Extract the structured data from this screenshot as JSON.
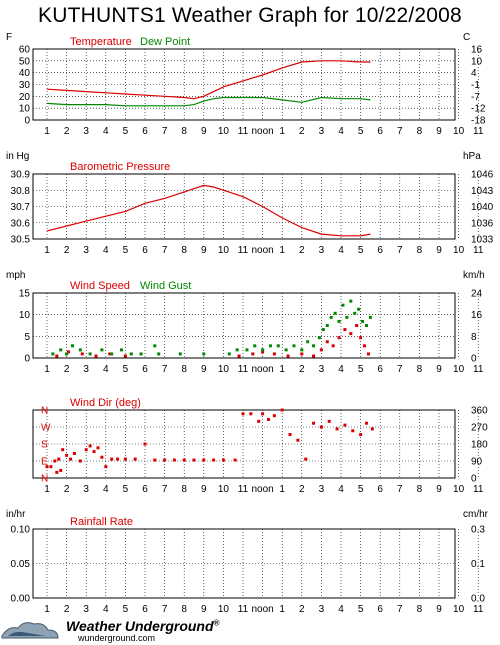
{
  "title": "KUTHUNTS1 Weather Graph for 10/22/2008",
  "time_labels": [
    "1",
    "2",
    "3",
    "4",
    "5",
    "6",
    "7",
    "8",
    "9",
    "10",
    "11",
    "noon",
    "1",
    "2",
    "3",
    "4",
    "5",
    "6",
    "7",
    "8",
    "9",
    "10",
    "11"
  ],
  "footer": {
    "brand": "Weather Underground",
    "trademark": "®",
    "site": "wunderground.com"
  },
  "colors": {
    "red": "#dd0000",
    "green": "#008800",
    "grid": "#000000"
  },
  "chart_data": [
    {
      "type": "line",
      "title": "Temperature",
      "title2": "Dew Point",
      "left_unit": "F",
      "right_unit": "C",
      "left_ticks": [
        "60",
        "50",
        "40",
        "30",
        "20",
        "10",
        "0"
      ],
      "right_ticks": [
        "16",
        "10",
        "4",
        "-1",
        "-7",
        "-12",
        "-18"
      ],
      "ylim": [
        0,
        60
      ],
      "x_hours": [
        0,
        1,
        2,
        3,
        4,
        5,
        6,
        7,
        7.5,
        8,
        8.5,
        9,
        10,
        11,
        12,
        13,
        14,
        15,
        16,
        16.5
      ],
      "series": [
        {
          "name": "Temperature",
          "color": "#dd0000",
          "values": [
            26,
            25,
            24,
            23,
            22,
            21,
            20,
            19,
            18,
            20,
            24,
            28,
            33,
            38,
            44,
            49,
            50,
            50,
            49,
            49
          ]
        },
        {
          "name": "Dew Point",
          "color": "#008800",
          "values": [
            14,
            13,
            13,
            13,
            12,
            12,
            12,
            12,
            13,
            16,
            18,
            19,
            19,
            19,
            17,
            15,
            19,
            18,
            18,
            17
          ]
        }
      ]
    },
    {
      "type": "line",
      "title": "Barometric Pressure",
      "left_unit": "in Hg",
      "right_unit": "hPa",
      "left_ticks": [
        "30.9",
        "30.8",
        "30.7",
        "30.6",
        "30.5"
      ],
      "right_ticks": [
        "1046",
        "1043",
        "1040",
        "1036",
        "1033"
      ],
      "ylim": [
        30.5,
        30.9
      ],
      "x_hours": [
        0,
        1,
        2,
        3,
        4,
        5,
        6,
        7,
        8,
        8.5,
        9,
        10,
        11,
        12,
        13,
        14,
        15,
        16,
        16.5
      ],
      "series": [
        {
          "name": "Barometric Pressure",
          "color": "#dd0000",
          "values": [
            30.55,
            30.58,
            30.61,
            30.64,
            30.67,
            30.72,
            30.75,
            30.79,
            30.83,
            30.82,
            30.8,
            30.76,
            30.7,
            30.63,
            30.57,
            30.53,
            30.52,
            30.52,
            30.53
          ]
        }
      ]
    },
    {
      "type": "scatter",
      "title": "Wind Speed",
      "title2": "Wind Gust",
      "left_unit": "mph",
      "right_unit": "km/h",
      "left_ticks": [
        "15",
        "10",
        "5",
        "0"
      ],
      "right_ticks": [
        "24",
        "16",
        "8",
        "0"
      ],
      "ylim": [
        0,
        16
      ],
      "series": [
        {
          "name": "Wind Speed",
          "color": "#dd0000",
          "x": [
            0.5,
            1.1,
            1.8,
            2.5,
            3.2,
            4.0,
            9.8,
            10.5,
            11.0,
            11.6,
            12.3,
            13.0,
            13.6,
            14.0,
            14.3,
            14.6,
            14.9,
            15.2,
            15.5,
            15.8,
            16.0,
            16.2,
            16.4
          ],
          "values": [
            0.5,
            1.5,
            1.0,
            0.5,
            1.0,
            0.5,
            0.5,
            1.0,
            1.5,
            1.0,
            0.5,
            1.0,
            0.5,
            2.0,
            4.0,
            3.0,
            5.0,
            7.0,
            6.0,
            8.0,
            5.0,
            3.0,
            1.0
          ]
        },
        {
          "name": "Wind Gust",
          "color": "#008800",
          "x": [
            0.3,
            0.7,
            1.0,
            1.3,
            1.7,
            2.2,
            2.8,
            3.3,
            3.8,
            4.3,
            4.8,
            5.5,
            5.7,
            6.8,
            8.0,
            9.3,
            9.7,
            10.2,
            10.6,
            11.0,
            11.4,
            11.8,
            12.2,
            12.6,
            13.0,
            13.3,
            13.6,
            13.9,
            14.1,
            14.3,
            14.5,
            14.7,
            14.9,
            15.1,
            15.3,
            15.5,
            15.7,
            15.9,
            16.1,
            16.3,
            16.5
          ],
          "values": [
            1,
            2,
            1,
            3,
            2,
            1,
            2,
            1,
            2,
            1,
            1,
            3,
            1,
            1,
            1,
            1,
            2,
            2,
            3,
            2,
            3,
            3,
            2,
            3,
            2,
            4,
            3,
            5,
            7,
            8,
            10,
            11,
            9,
            13,
            10,
            14,
            11,
            12,
            9,
            8,
            10
          ]
        }
      ]
    },
    {
      "type": "scatter",
      "title": "Wind Dir (deg)",
      "left_unit": "",
      "right_unit": "",
      "left_ticks": [
        "N",
        "W",
        "S",
        "E",
        "N"
      ],
      "right_ticks": [
        "360",
        "270",
        "180",
        "90",
        "0"
      ],
      "ylim": [
        0,
        360
      ],
      "series": [
        {
          "name": "Wind Dir (deg)",
          "color": "#dd0000",
          "x": [
            0,
            0.2,
            0.4,
            0.5,
            0.6,
            0.7,
            0.8,
            1.0,
            1.2,
            1.4,
            1.7,
            2.0,
            2.2,
            2.4,
            2.6,
            2.8,
            3.0,
            3.3,
            3.6,
            4.0,
            4.5,
            5.0,
            5.5,
            6.0,
            6.5,
            7.0,
            7.5,
            8.0,
            8.5,
            9.0,
            9.6,
            10.0,
            10.4,
            10.8,
            11.0,
            11.3,
            11.6,
            12.0,
            12.4,
            12.8,
            13.2,
            13.6,
            14.0,
            14.4,
            14.8,
            15.2,
            15.6,
            16.0,
            16.3,
            16.6
          ],
          "values": [
            60,
            60,
            90,
            30,
            100,
            40,
            150,
            120,
            100,
            130,
            90,
            150,
            170,
            140,
            160,
            110,
            60,
            100,
            100,
            100,
            100,
            180,
            95,
            95,
            95,
            95,
            95,
            95,
            95,
            95,
            95,
            340,
            340,
            300,
            340,
            310,
            330,
            360,
            230,
            200,
            100,
            290,
            270,
            300,
            260,
            280,
            250,
            230,
            290,
            260
          ]
        }
      ]
    },
    {
      "type": "line",
      "title": "Rainfall Rate",
      "left_unit": "in/hr",
      "right_unit": "cm/hr",
      "left_ticks": [
        "0.10",
        "0.05",
        "0.00"
      ],
      "right_ticks": [
        "0.3",
        "0.1",
        "0.0"
      ],
      "ylim": [
        0,
        0.1
      ],
      "series": [
        {
          "name": "Rainfall Rate",
          "color": "#dd0000",
          "values": []
        }
      ]
    }
  ]
}
